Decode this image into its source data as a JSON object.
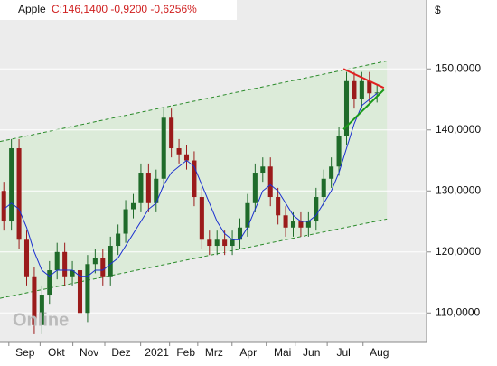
{
  "chart_data": {
    "type": "candlestick",
    "symbol": "Apple",
    "quote": "C:146,1400 -0,9200 -0,6256%",
    "currency": "$",
    "logo": "Online",
    "up_color": "#1f6b2a",
    "down_color": "#9b1b1b",
    "ma_color": "#1a2fd0",
    "xlim": [
      0,
      56
    ],
    "xticks": [
      {
        "value": 3.3,
        "label": "Sep"
      },
      {
        "value": 7.4,
        "label": "Okt"
      },
      {
        "value": 11.7,
        "label": "Nov"
      },
      {
        "value": 15.9,
        "label": "Dez"
      },
      {
        "value": 20.6,
        "label": "2021"
      },
      {
        "value": 24.4,
        "label": "Feb"
      },
      {
        "value": 28.1,
        "label": "Mrz"
      },
      {
        "value": 32.6,
        "label": "Apr"
      },
      {
        "value": 37.1,
        "label": "Mai"
      },
      {
        "value": 40.9,
        "label": "Jun"
      },
      {
        "value": 45.1,
        "label": "Jul"
      },
      {
        "value": 49.8,
        "label": "Aug"
      }
    ],
    "ylim": [
      105.3,
      161.3
    ],
    "yticks": [
      {
        "value": 110,
        "label": "110,0000"
      },
      {
        "value": 120,
        "label": "120,0000"
      },
      {
        "value": 130,
        "label": "130,0000"
      },
      {
        "value": 140,
        "label": "140,0000"
      },
      {
        "value": 150,
        "label": "150,0000"
      }
    ],
    "open": [
      130,
      125,
      137,
      122,
      116,
      108,
      113,
      117,
      120,
      116,
      117,
      110,
      118,
      119,
      116,
      121,
      123,
      127,
      128,
      133,
      128,
      132,
      142,
      137,
      136,
      135,
      129,
      122,
      121,
      122,
      121,
      122,
      124,
      128,
      133,
      134,
      129,
      126,
      124,
      125,
      124,
      125,
      129,
      132,
      134,
      139,
      148,
      145,
      148,
      146
    ],
    "high": [
      131.5,
      138.5,
      138.5,
      123.5,
      117.5,
      114.5,
      118.5,
      121.5,
      121.5,
      118.5,
      118.5,
      119.5,
      120.5,
      120.5,
      122.5,
      124.5,
      128.5,
      129.5,
      134.5,
      134.5,
      133.5,
      143.5,
      143.5,
      138.5,
      137.5,
      136.5,
      130.5,
      123.5,
      123.5,
      123.5,
      123.5,
      125.5,
      129.5,
      134.5,
      135.5,
      135.5,
      130.5,
      127.5,
      126.5,
      126.5,
      126.5,
      130.5,
      133.5,
      135.5,
      140.5,
      149.5,
      149.5,
      149.5,
      149.5,
      147.5
    ],
    "low": [
      123.5,
      123.5,
      120.5,
      114.5,
      106.5,
      106.5,
      111.5,
      115.5,
      114.5,
      114.5,
      108.5,
      108.5,
      116.5,
      114.5,
      114.5,
      119.5,
      121.5,
      125.5,
      126.5,
      126.5,
      126.5,
      130.5,
      135.5,
      134.5,
      133.5,
      127.5,
      120.5,
      119.5,
      119.5,
      119.5,
      119.5,
      120.5,
      122.5,
      126.5,
      131.5,
      127.5,
      124.5,
      122.5,
      122.5,
      122.5,
      122.5,
      123.5,
      127.5,
      130.5,
      132.5,
      137.5,
      143.5,
      143.5,
      144.5,
      144.5
    ],
    "close": [
      125,
      137,
      122,
      116,
      108,
      113,
      117,
      120,
      116,
      117,
      110,
      118,
      119,
      116,
      121,
      123,
      127,
      128,
      133,
      128,
      132,
      142,
      137,
      136,
      135,
      129,
      122,
      121,
      122,
      121,
      122,
      124,
      128,
      133,
      134,
      129,
      126,
      124,
      125,
      124,
      125,
      129,
      132,
      134,
      139,
      148,
      145,
      148,
      146,
      146.14
    ],
    "moving_average": [
      127,
      128,
      127,
      124,
      120,
      117,
      116,
      117,
      117,
      117,
      116,
      116,
      117,
      117,
      118,
      119,
      121,
      123,
      125,
      127,
      128,
      131,
      133,
      134,
      135,
      134,
      131,
      128,
      125,
      123,
      122,
      122,
      124,
      127,
      130,
      131,
      130,
      128,
      126,
      125,
      125,
      126,
      128,
      130,
      133,
      137,
      141,
      144,
      145,
      146
    ],
    "channel": {
      "fill": "#dcebd9",
      "color": "#2a8a2a",
      "upper": {
        "x": [
          0,
          50.8
        ],
        "y": [
          138.1,
          151.3
        ]
      },
      "lower": {
        "x": [
          0,
          50.8
        ],
        "y": [
          112.4,
          125.4
        ]
      }
    },
    "trendlines": [
      {
        "color": "#e02020",
        "x": [
          45.1,
          50.4
        ],
        "y": [
          150.0,
          146.9
        ]
      },
      {
        "color": "#1a9a1a",
        "x": [
          45.1,
          50.4
        ],
        "y": [
          140.1,
          146.6
        ]
      }
    ]
  }
}
